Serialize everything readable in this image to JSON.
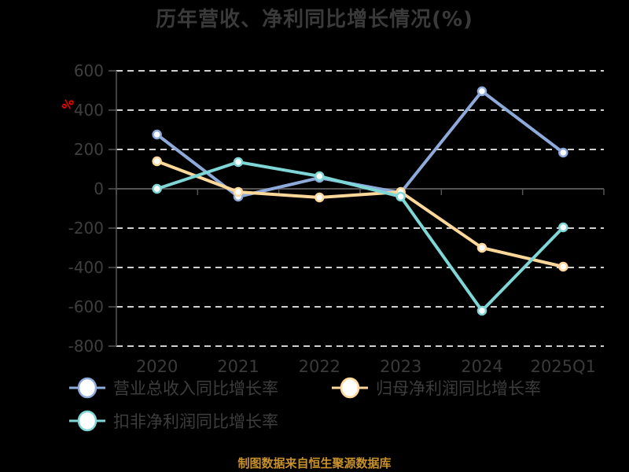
{
  "title": "历年营收、净利同比增长情况(%)",
  "unit_label": "%",
  "source": "制图数据来自恒生聚源数据库",
  "colors": {
    "revenue": "#8eaadb",
    "net_profit": "#ffd89a",
    "deducted_profit": "#7fd6d6",
    "grid": "#d0d0d0",
    "axis": "#555555",
    "source": "#c8912a"
  },
  "legend": [
    {
      "label": "营业总收入同比增长率",
      "color": "#8eaadb"
    },
    {
      "label": "归母净利润同比增长率",
      "color": "#ffd89a"
    },
    {
      "label": "扣非净利润同比增长率",
      "color": "#7fd6d6"
    }
  ],
  "chart_data": {
    "type": "line",
    "title": "历年营收、净利同比增长情况(%)",
    "xlabel": "",
    "ylabel": "%",
    "categories": [
      "2020",
      "2021",
      "2022",
      "2023",
      "2024",
      "2025Q1"
    ],
    "ylim": [
      -800,
      600
    ],
    "yticks": [
      600,
      400,
      200,
      0,
      -200,
      -400,
      -600,
      -800
    ],
    "grid": true,
    "legend_position": "bottom",
    "series": [
      {
        "name": "营业总收入同比增长率",
        "values": [
          276,
          -40,
          56,
          -20,
          496,
          184
        ]
      },
      {
        "name": "归母净利润同比增长率",
        "values": [
          140,
          -16,
          -44,
          -16,
          -300,
          -396
        ]
      },
      {
        "name": "扣非净利润同比增长率",
        "values": [
          0,
          136,
          64,
          -40,
          -620,
          -196
        ]
      }
    ]
  }
}
